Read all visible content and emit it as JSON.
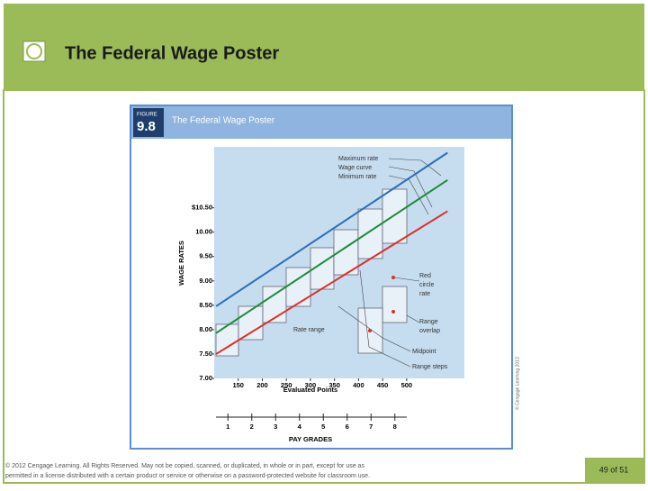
{
  "slide": {
    "title": "The Federal Wage Poster",
    "footer": [
      "© 2012 Cengage Learning. All Rights Reserved. May not be copied, scanned, or duplicated, in whole or in part, except for use as",
      "permitted in a license distributed with a certain product or service or otherwise on a password-protected website for classroom use."
    ],
    "page": "49 of 51"
  },
  "figure": {
    "label": "FIGURE",
    "number": "9.8",
    "credit": "© Cengage Learning 2013"
  },
  "chart_data": {
    "type": "line",
    "title": "The Federal Wage Poster",
    "x_label": "Evaluated Points",
    "y_label": "WAGE RATES",
    "xlim": [
      100,
      620
    ],
    "xticks": [
      150,
      200,
      250,
      300,
      350,
      400,
      450,
      500
    ],
    "ylim": [
      7,
      11.75
    ],
    "yticks": [
      {
        "value": 7,
        "label": "7.00"
      },
      {
        "value": 7.5,
        "label": "7.50"
      },
      {
        "value": 8,
        "label": "8.00"
      },
      {
        "value": 8.5,
        "label": "8.50"
      },
      {
        "value": 9,
        "label": "9.00"
      },
      {
        "value": 9.5,
        "label": "9.50"
      },
      {
        "value": 10,
        "label": "10.00"
      },
      {
        "value": 10.5,
        "label": "$10.50"
      }
    ],
    "series": [
      {
        "name": "Maximum rate",
        "color": "#2e6db4",
        "x": [
          104,
          585
        ],
        "values": [
          8.48,
          11.63
        ]
      },
      {
        "name": "Wage curve",
        "color": "#1f8a3a",
        "x": [
          104,
          585
        ],
        "values": [
          7.93,
          11.07
        ]
      },
      {
        "name": "Minimum rate",
        "color": "#d9302c",
        "x": [
          104,
          585
        ],
        "values": [
          7.5,
          10.43
        ]
      }
    ],
    "annotations": [
      [
        "Red",
        "circle",
        "rate"
      ],
      [
        "Range",
        "overlap"
      ],
      [
        "Rate range"
      ],
      [
        "Midpoint"
      ],
      [
        "Range steps"
      ]
    ],
    "pay_grades": {
      "label": "PAY GRADES",
      "ticks": [
        1,
        2,
        3,
        4,
        5,
        6,
        7,
        8
      ]
    }
  }
}
